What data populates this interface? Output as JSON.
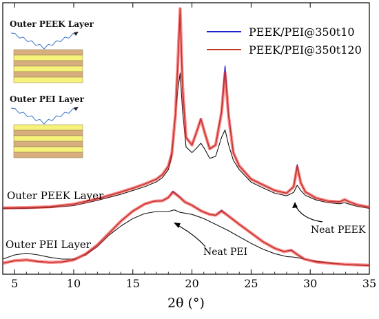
{
  "chart_data": {
    "type": "line",
    "title": "",
    "xlabel": "2θ (°)",
    "ylabel": "",
    "xlim": [
      4,
      35
    ],
    "x_ticks": [
      5,
      10,
      15,
      20,
      25,
      30,
      35
    ],
    "y_ticks_shown": false,
    "grid": false,
    "legend": {
      "position": "top-right",
      "entries": [
        "PEEK/PEI@350t10",
        "PEEK/PEI@350t120"
      ]
    },
    "colors": {
      "t10": "#1f1fcf",
      "t120": "#c0392b",
      "t120_shade": "#ff3030",
      "neat": "#111111",
      "inset_yellow": "#f7f27a",
      "inset_tan": "#d8ae7e",
      "inset_ray": "#3a74c8"
    },
    "annotations": {
      "outer_peek_layer": "Outer PEEK Layer",
      "outer_pei_layer": "Outer PEI Layer",
      "neat_peek": "Neat PEEK",
      "neat_pei": "Neat PEI"
    },
    "insets": [
      {
        "label": "Outer PEEK Layer",
        "stack": [
          "tan",
          "yellow",
          "tan",
          "yellow",
          "tan",
          "yellow"
        ]
      },
      {
        "label": "Outer PEI Layer",
        "stack": [
          "yellow",
          "tan",
          "yellow",
          "tan",
          "yellow",
          "tan"
        ]
      }
    ],
    "series": [
      {
        "name": "PEEK/PEI@350t10",
        "color_key": "t10",
        "group": "PEEK",
        "x": [
          4,
          6,
          8,
          10,
          12,
          14,
          15,
          16,
          17,
          17.5,
          18,
          18.3,
          18.6,
          18.8,
          19,
          19.2,
          19.5,
          20,
          20.4,
          20.75,
          21.1,
          21.5,
          22,
          22.5,
          22.8,
          23.1,
          23.5,
          24,
          25,
          26,
          27,
          28,
          28.6,
          28.9,
          29.2,
          29.6,
          30.5,
          31.5,
          32.5,
          32.9,
          33.3,
          34,
          35
        ],
        "y": [
          0.4,
          0.5,
          0.7,
          1.4,
          2.8,
          4.6,
          5.6,
          6.7,
          8.0,
          9.2,
          11.5,
          15.0,
          25.0,
          38.0,
          52.0,
          32.0,
          19.0,
          17.0,
          20.5,
          24.0,
          20.0,
          16.0,
          17.0,
          26.0,
          37.8,
          25.0,
          15.0,
          11.5,
          8.0,
          6.5,
          5.0,
          4.3,
          6.0,
          11.8,
          7.0,
          4.6,
          3.0,
          2.2,
          2.0,
          2.6,
          2.0,
          1.2,
          0.6
        ]
      },
      {
        "name": "PEEK/PEI@350t120",
        "color_key": "t120",
        "group": "PEEK",
        "x": [
          4,
          6,
          8,
          10,
          12,
          14,
          15,
          16,
          17,
          17.5,
          18,
          18.3,
          18.6,
          18.8,
          19,
          19.2,
          19.5,
          20,
          20.4,
          20.75,
          21.1,
          21.5,
          22,
          22.5,
          22.8,
          23.1,
          23.5,
          24,
          25,
          26,
          27,
          28,
          28.6,
          28.9,
          29.2,
          29.6,
          30.5,
          31.5,
          32.5,
          32.9,
          33.3,
          34,
          35
        ],
        "y": [
          0.4,
          0.5,
          0.7,
          1.4,
          2.8,
          4.6,
          5.6,
          6.7,
          8.0,
          9.2,
          11.4,
          14.8,
          25.0,
          38.5,
          53.0,
          32.5,
          19.0,
          17.0,
          20.5,
          23.8,
          20.0,
          16.0,
          17.0,
          25.5,
          36.0,
          24.5,
          15.0,
          11.5,
          8.0,
          6.5,
          5.0,
          4.3,
          6.0,
          11.2,
          7.0,
          4.6,
          3.0,
          2.2,
          2.0,
          2.6,
          2.0,
          1.2,
          0.6
        ]
      },
      {
        "name": "Neat PEEK",
        "color_key": "neat",
        "group": "PEEK",
        "x": [
          4,
          6,
          8,
          10,
          12,
          14,
          15,
          16,
          17,
          17.5,
          18,
          18.3,
          18.6,
          18.8,
          19,
          19.2,
          19.5,
          20,
          20.4,
          20.75,
          21.1,
          21.5,
          22,
          22.5,
          22.8,
          23.1,
          23.5,
          24,
          25,
          26,
          27,
          28,
          28.6,
          28.9,
          29.2,
          29.6,
          30.5,
          31.5,
          32.5,
          32.9,
          33.3,
          34,
          35
        ],
        "y": [
          0.2,
          0.3,
          0.5,
          1.0,
          2.4,
          4.0,
          5.0,
          6.0,
          7.3,
          8.4,
          10.5,
          14.0,
          25.0,
          31.5,
          36.0,
          26.0,
          16.5,
          15.0,
          16.2,
          17.5,
          15.8,
          13.5,
          14.0,
          19.0,
          21.0,
          17.0,
          13.0,
          10.5,
          7.2,
          5.7,
          4.3,
          3.6,
          4.5,
          6.4,
          5.0,
          3.7,
          2.5,
          1.8,
          1.5,
          1.8,
          1.4,
          0.8,
          0.3
        ]
      },
      {
        "name": "PEEK/PEI@350t10 (Outer PEI)",
        "color_key": "t10",
        "group": "PEI",
        "x": [
          4,
          5,
          6,
          7,
          8,
          9,
          10,
          11,
          12,
          13,
          14,
          15,
          16,
          16.8,
          17.5,
          18,
          18.4,
          18.9,
          19.4,
          20,
          20.8,
          21.5,
          22,
          22.5,
          23,
          24,
          25,
          26,
          27,
          27.8,
          28.4,
          28.9,
          29.5,
          30.5,
          32,
          33,
          34,
          35
        ],
        "y": [
          1.0,
          1.6,
          1.8,
          1.4,
          1.2,
          1.3,
          1.8,
          3.2,
          5.4,
          8.3,
          11.2,
          13.6,
          15.3,
          16.0,
          16.1,
          16.9,
          18.4,
          17.2,
          15.8,
          15.0,
          13.6,
          12.8,
          12.6,
          13.8,
          12.6,
          10.4,
          8.3,
          6.2,
          4.6,
          3.8,
          4.2,
          3.1,
          2.0,
          1.3,
          0.9,
          0.7,
          0.6,
          0.5
        ]
      },
      {
        "name": "PEEK/PEI@350t120 (Outer PEI)",
        "color_key": "t120",
        "group": "PEI",
        "x": [
          4,
          5,
          6,
          7,
          8,
          9,
          10,
          11,
          12,
          13,
          14,
          15,
          16,
          16.8,
          17.5,
          18,
          18.4,
          18.9,
          19.4,
          20,
          20.8,
          21.5,
          22,
          22.5,
          23,
          24,
          25,
          26,
          27,
          27.8,
          28.4,
          28.9,
          29.5,
          30.5,
          32,
          33,
          34,
          35
        ],
        "y": [
          1.0,
          1.6,
          1.8,
          1.4,
          1.2,
          1.3,
          1.8,
          3.2,
          5.4,
          8.3,
          11.2,
          13.6,
          15.3,
          16.0,
          16.1,
          16.9,
          18.2,
          17.1,
          15.8,
          15.0,
          13.6,
          12.8,
          12.6,
          13.6,
          12.6,
          10.4,
          8.3,
          6.2,
          4.6,
          3.8,
          4.1,
          3.1,
          2.0,
          1.3,
          0.9,
          0.7,
          0.6,
          0.5
        ]
      },
      {
        "name": "Neat PEI",
        "color_key": "neat",
        "group": "PEI",
        "x": [
          4,
          5,
          6,
          7,
          8,
          9,
          10,
          11,
          12,
          13,
          14,
          15,
          16,
          17,
          18,
          18.5,
          19,
          20,
          21,
          22,
          23,
          24,
          25,
          26,
          27,
          28,
          28.5,
          29,
          30,
          31,
          32,
          33,
          34,
          35
        ],
        "y": [
          2.0,
          3.0,
          3.4,
          3.0,
          2.4,
          2.0,
          2.0,
          3.0,
          5.0,
          7.8,
          10.0,
          11.8,
          13.0,
          13.5,
          13.5,
          13.9,
          13.3,
          12.8,
          11.8,
          10.4,
          9.0,
          7.4,
          5.8,
          4.4,
          3.3,
          2.6,
          2.5,
          2.3,
          1.7,
          1.3,
          1.0,
          0.7,
          0.5,
          0.4
        ]
      }
    ]
  }
}
